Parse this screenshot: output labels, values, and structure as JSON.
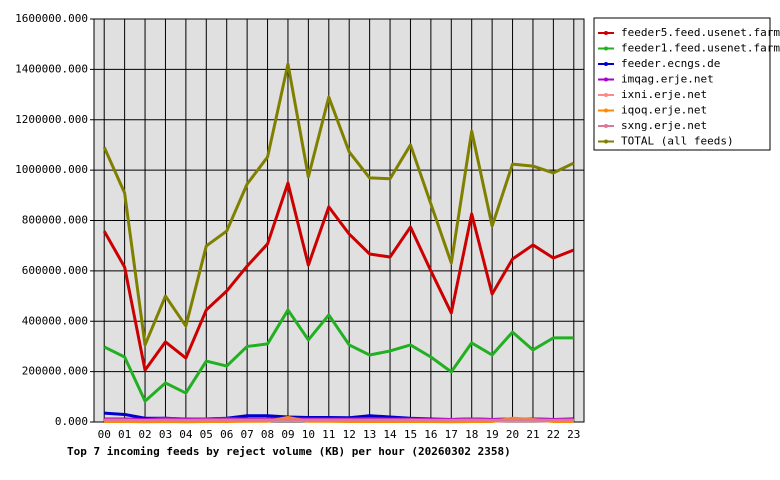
{
  "chart_data": {
    "type": "line",
    "title": "Top 7 incoming feeds by reject volume (KB) per hour (20260302 2358)",
    "categories": [
      "00",
      "01",
      "02",
      "03",
      "04",
      "05",
      "06",
      "07",
      "08",
      "09",
      "10",
      "11",
      "12",
      "13",
      "14",
      "15",
      "16",
      "17",
      "18",
      "19",
      "20",
      "21",
      "22",
      "23"
    ],
    "ylim": [
      0,
      1600000
    ],
    "yticks": [
      {
        "value": 0,
        "label": "0.000"
      },
      {
        "value": 200000,
        "label": "200000.000"
      },
      {
        "value": 400000,
        "label": "400000.000"
      },
      {
        "value": 600000,
        "label": "600000.000"
      },
      {
        "value": 800000,
        "label": "800000.000"
      },
      {
        "value": 1000000,
        "label": "1000000.000"
      },
      {
        "value": 1200000,
        "label": "1200000.000"
      },
      {
        "value": 1400000,
        "label": "1400000.000"
      },
      {
        "value": 1600000,
        "label": "1600000.000"
      }
    ],
    "grid": true,
    "legend": "right",
    "series": [
      {
        "name": "feeder5.feed.usenet.farm",
        "color": "#cc0000",
        "values": [
          758000,
          615000,
          206000,
          318000,
          254000,
          445000,
          520000,
          619000,
          707000,
          949000,
          623000,
          854000,
          746000,
          667000,
          655000,
          774000,
          600000,
          433000,
          826000,
          508000,
          647000,
          703000,
          651000,
          683000
        ]
      },
      {
        "name": "feeder1.feed.usenet.farm",
        "color": "#22b022",
        "values": [
          298000,
          258000,
          83000,
          155000,
          115000,
          242000,
          222000,
          300000,
          310000,
          445000,
          326000,
          425000,
          306000,
          266000,
          282000,
          306000,
          258000,
          199000,
          314000,
          266000,
          357000,
          286000,
          334000,
          334000
        ]
      },
      {
        "name": "feeder.ecngs.de",
        "color": "#0000cc",
        "values": [
          35000,
          30000,
          15000,
          15000,
          10000,
          12000,
          15000,
          25000,
          25000,
          20000,
          18000,
          18000,
          17000,
          25000,
          20000,
          15000,
          12000,
          10000,
          12000,
          10000,
          12000,
          12000,
          10000,
          12000
        ]
      },
      {
        "name": "imqag.erje.net",
        "color": "#aa00cc",
        "values": [
          12000,
          12000,
          10000,
          15000,
          12000,
          12000,
          14000,
          12000,
          12000,
          12000,
          12000,
          12000,
          12000,
          14000,
          12000,
          12000,
          10000,
          10000,
          12000,
          10000,
          12000,
          12000,
          10000,
          10000
        ]
      },
      {
        "name": "ixni.erje.net",
        "color": "#ff8888",
        "values": [
          5000,
          5000,
          4000,
          5000,
          4000,
          5000,
          5000,
          5000,
          5000,
          6000,
          5000,
          5000,
          5000,
          5000,
          5000,
          5000,
          4000,
          4000,
          5000,
          4000,
          5000,
          5000,
          4000,
          5000
        ]
      },
      {
        "name": "iqoq.erje.net",
        "color": "#ff8800",
        "values": [
          2000,
          2000,
          1000,
          2000,
          1000,
          2000,
          2000,
          3000,
          3000,
          18000,
          3000,
          3000,
          2000,
          2000,
          2000,
          2000,
          2000,
          1000,
          2000,
          2000,
          15000,
          10000,
          2000,
          2000
        ]
      },
      {
        "name": "sxng.erje.net",
        "color": "#dd7799",
        "values": [
          8000,
          8000,
          6000,
          8000,
          7000,
          8000,
          8000,
          8000,
          8000,
          8000,
          8000,
          8000,
          8000,
          8000,
          8000,
          8000,
          7000,
          7000,
          8000,
          7000,
          8000,
          8000,
          7000,
          8000
        ]
      },
      {
        "name": "TOTAL (all feeds)",
        "color": "#808000",
        "values": [
          1091000,
          909000,
          306000,
          500000,
          381000,
          699000,
          758000,
          945000,
          1052000,
          1421000,
          973000,
          1290000,
          1072000,
          969000,
          966000,
          1100000,
          866000,
          631000,
          1155000,
          778000,
          1024000,
          1016000,
          989000,
          1028000
        ]
      }
    ]
  }
}
